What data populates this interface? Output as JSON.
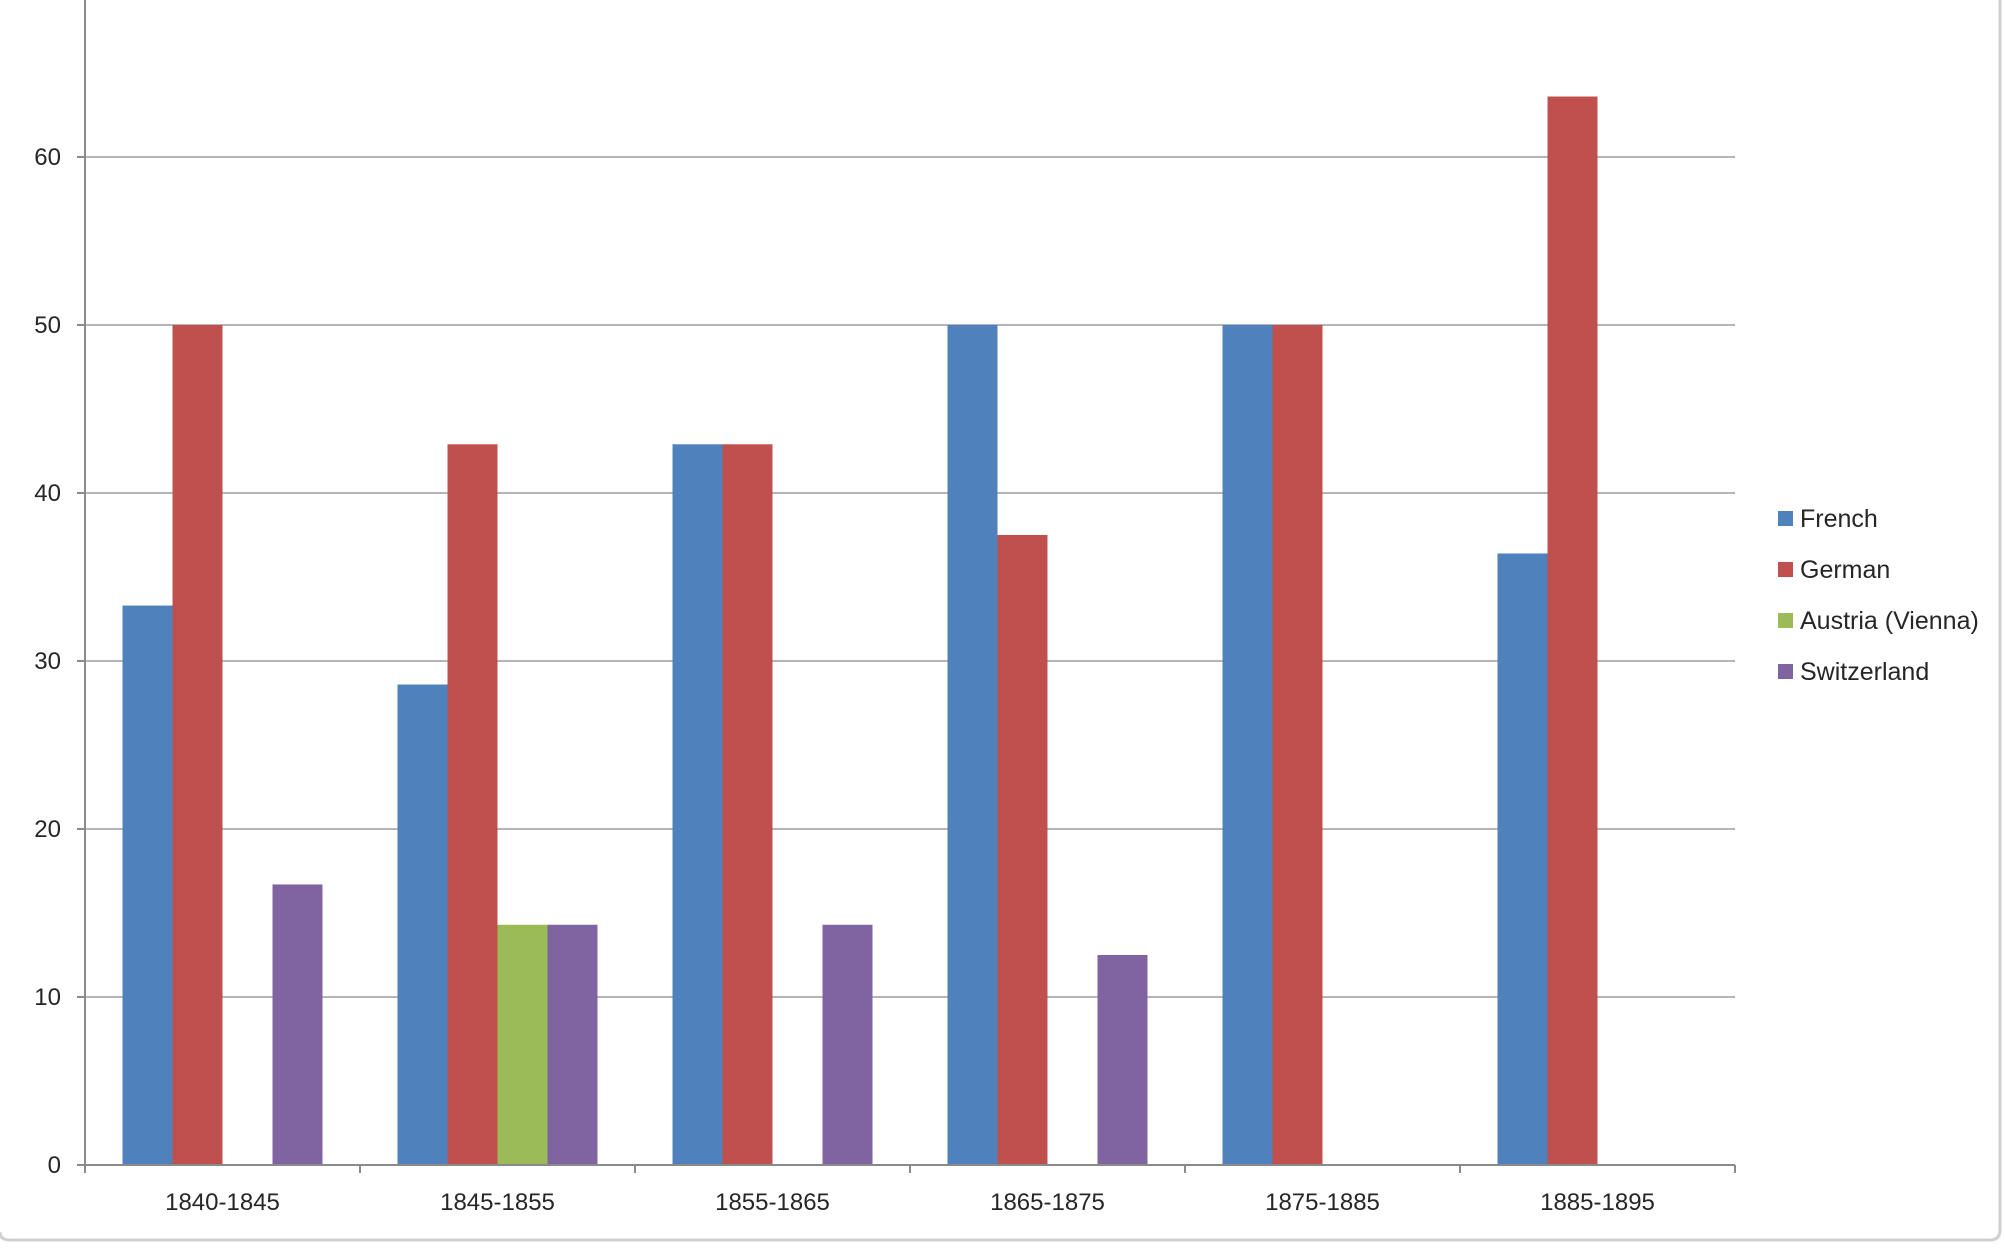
{
  "chart_data": {
    "type": "bar",
    "title": "",
    "xlabel": "",
    "ylabel": "",
    "categories": [
      "1840-1845",
      "1845-1855",
      "1855-1865",
      "1865-1875",
      "1875-1885",
      "1885-1895"
    ],
    "series": [
      {
        "name": "French",
        "color": "#4F81BD",
        "values": [
          33.3,
          28.6,
          42.9,
          50,
          50,
          36.4
        ]
      },
      {
        "name": "German",
        "color": "#C0504D",
        "values": [
          50,
          42.9,
          42.9,
          37.5,
          50,
          63.6
        ]
      },
      {
        "name": "Austria (Vienna)",
        "color": "#9BBB59",
        "values": [
          0,
          14.3,
          0,
          0,
          0,
          0
        ]
      },
      {
        "name": "Switzerland",
        "color": "#8064A2",
        "values": [
          16.7,
          14.3,
          14.3,
          12.5,
          0,
          0
        ]
      }
    ],
    "ylim": [
      0,
      70
    ],
    "yticks": [
      0,
      10,
      20,
      30,
      40,
      50,
      60
    ],
    "grid": true,
    "legend_position": "right"
  }
}
